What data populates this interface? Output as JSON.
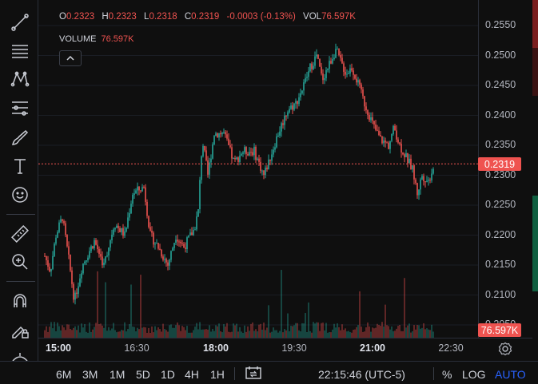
{
  "legend": {
    "open_label": "O",
    "open_value": "0.2323",
    "high_label": "H",
    "high_value": "0.2323",
    "low_label": "L",
    "low_value": "0.2318",
    "close_label": "C",
    "close_value": "0.2319",
    "change": "-0.0003 (-0.13%)",
    "vol_label": "VOL",
    "vol_value": "76.597K"
  },
  "volume_legend": {
    "label": "VOLUME",
    "value": "76.597K"
  },
  "price_axis": {
    "ticks": [
      "0.2550",
      "0.2500",
      "0.2450",
      "0.2400",
      "0.2350",
      "0.2300",
      "0.2250",
      "0.2200",
      "0.2150",
      "0.2100",
      "0.2050"
    ]
  },
  "last_price_badge": "0.2319",
  "volume_badge": "76.597K",
  "time_axis": {
    "ticks": [
      {
        "label": "15:00",
        "bold": true
      },
      {
        "label": "16:30",
        "bold": false
      },
      {
        "label": "18:00",
        "bold": true
      },
      {
        "label": "19:30",
        "bold": false
      },
      {
        "label": "21:00",
        "bold": true
      },
      {
        "label": "22:30",
        "bold": false
      }
    ]
  },
  "bottom_bar": {
    "ranges": [
      "6M",
      "3M",
      "1M",
      "5D",
      "1D",
      "4H",
      "1H"
    ],
    "clock": "22:15:46 (UTC-5)",
    "percent": "%",
    "log": "LOG",
    "auto": "AUTO"
  },
  "colors": {
    "up": "#26a69a",
    "down": "#ef5350",
    "accent": "#2962ff",
    "background": "#0f0f0f"
  },
  "toolbar_icons": [
    "trend-line-icon",
    "horizontal-lines-icon",
    "pattern-icon",
    "fib-icon",
    "brush-icon",
    "text-icon",
    "emoji-icon",
    "ruler-icon",
    "zoom-in-icon",
    "magnet-icon",
    "lock-drawings-icon",
    "hide-drawings-icon"
  ],
  "chart_data": {
    "type": "candlestick",
    "x": [
      "15:00",
      "16:30",
      "18:00",
      "19:30",
      "21:00",
      "22:15"
    ],
    "close": [
      0.216,
      0.228,
      0.233,
      0.249,
      0.234,
      0.2319
    ],
    "ylim": [
      0.205,
      0.255
    ],
    "last_price": 0.2319
  }
}
